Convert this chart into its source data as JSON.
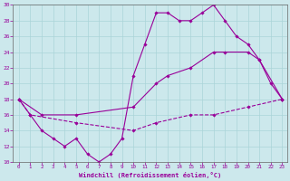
{
  "xlabel": "Windchill (Refroidissement éolien,°C)",
  "bg_color": "#cce8ec",
  "grid_color": "#aad4d8",
  "line_color": "#990099",
  "xlim_min": -0.5,
  "xlim_max": 23.4,
  "ylim_min": 10,
  "ylim_max": 30,
  "yticks": [
    10,
    12,
    14,
    16,
    18,
    20,
    22,
    24,
    26,
    28,
    30
  ],
  "xticks": [
    0,
    1,
    2,
    3,
    4,
    5,
    6,
    7,
    8,
    9,
    10,
    11,
    12,
    13,
    14,
    15,
    16,
    17,
    18,
    19,
    20,
    21,
    22,
    23
  ],
  "line1_x": [
    0,
    1,
    2,
    3,
    4,
    5,
    6,
    7,
    8,
    9,
    10,
    11,
    12,
    13,
    14,
    15,
    16,
    17,
    18,
    19,
    20,
    21,
    22,
    23
  ],
  "line1_y": [
    18,
    16,
    14,
    13,
    12,
    13,
    11,
    10,
    11,
    13,
    21,
    25,
    29,
    29,
    28,
    28,
    29,
    30,
    28,
    26,
    25,
    23,
    20,
    18
  ],
  "line2_x": [
    0,
    2,
    5,
    10,
    12,
    13,
    15,
    17,
    18,
    20,
    21,
    23
  ],
  "line2_y": [
    18,
    16,
    16,
    17,
    20,
    21,
    22,
    24,
    24,
    24,
    23,
    18
  ],
  "line3_x": [
    0,
    1,
    5,
    10,
    12,
    15,
    17,
    20,
    23
  ],
  "line3_y": [
    18,
    16,
    15,
    14,
    15,
    16,
    16,
    17,
    18
  ]
}
